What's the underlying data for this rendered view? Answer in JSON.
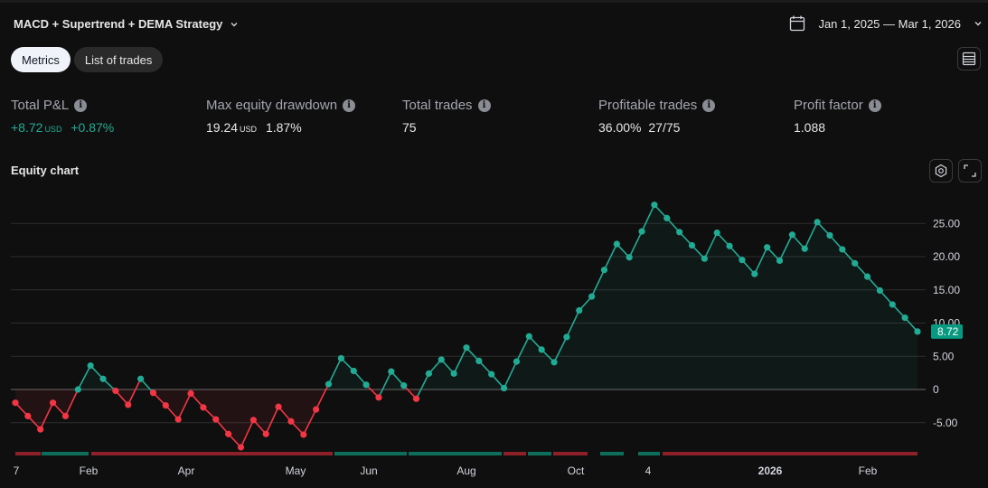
{
  "header": {
    "strategy_name": "MACD + Supertrend + DEMA Strategy",
    "date_range": "Jan 1, 2025 — Mar 1, 2026"
  },
  "tabs": [
    {
      "label": "Metrics",
      "active": true
    },
    {
      "label": "List of trades",
      "active": false
    }
  ],
  "metrics": {
    "total_pnl": {
      "label": "Total P&L",
      "value": "+8.72",
      "unit": "USD",
      "percent": "+0.87%"
    },
    "max_drawdown": {
      "label": "Max equity drawdown",
      "value": "19.24",
      "unit": "USD",
      "percent": "1.87%"
    },
    "total_trades": {
      "label": "Total trades",
      "value": "75"
    },
    "profitable_trades": {
      "label": "Profitable trades",
      "percent": "36.00%",
      "ratio": "27/75"
    },
    "profit_factor": {
      "label": "Profit factor",
      "value": "1.088"
    }
  },
  "equity": {
    "title": "Equity chart"
  },
  "colors": {
    "positive": "#22ab94",
    "negative": "#f23645",
    "accent": "#089981"
  },
  "icons": [
    "calendar-icon",
    "chevron-down-icon",
    "list-icon",
    "info-icon",
    "settings-icon",
    "expand-icon"
  ],
  "chart_data": {
    "type": "line",
    "series": [
      {
        "values": [
          -2,
          -4,
          -6,
          -2,
          -4,
          0,
          3.6,
          1.6,
          -0.2,
          -2.3,
          1.6,
          -0.5,
          -2.4,
          -4.5,
          -0.6,
          -2.7,
          -4.5,
          -6.7,
          -8.7,
          -4.6,
          -6.7,
          -2.6,
          -4.8,
          -6.8,
          -3,
          0.8,
          4.7,
          2.8,
          0.7,
          -1.2,
          2.7,
          0.6,
          -1.4,
          2.4,
          4.5,
          2.4,
          6.3,
          4.3,
          2.3,
          0.2,
          4.2,
          8,
          6,
          4.1,
          7.9,
          11.9,
          14,
          18,
          21.9,
          19.9,
          23.8,
          27.8,
          25.8,
          23.7,
          21.7,
          19.7,
          23.6,
          21.6,
          19.5,
          17.4,
          21.4,
          19.4,
          23.3,
          21.2,
          25.2,
          23.2,
          21.1,
          19,
          17,
          14.9,
          12.8,
          10.8,
          8.72
        ]
      }
    ],
    "ylim": [
      -9,
      28
    ],
    "yticks": [
      "25.00",
      "20.00",
      "15.00",
      "10.00",
      "5.00",
      "0",
      "-5.00"
    ],
    "xticks": [
      "7",
      "Feb",
      "Apr",
      "May",
      "Jun",
      "Aug",
      "Oct",
      "4",
      "2026",
      "Feb"
    ],
    "last_value": "8.72",
    "trade_bars": [
      "red",
      "green",
      "red",
      "red",
      "green",
      "red",
      "red",
      "green",
      "red",
      "green",
      "green",
      "red"
    ]
  }
}
